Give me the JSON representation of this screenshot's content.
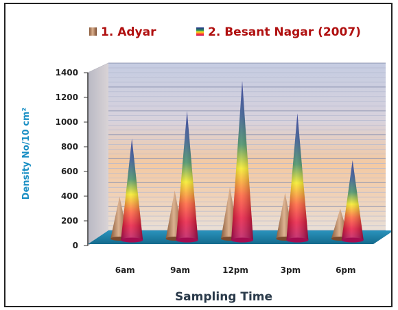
{
  "chart_data": {
    "type": "bar",
    "style": "3d-cone",
    "categories": [
      "6am",
      "9am",
      "12pm",
      "3pm",
      "6pm"
    ],
    "series": [
      {
        "name": "1. Adyar",
        "values": [
          350,
          400,
          430,
          380,
          250
        ]
      },
      {
        "name": "2. Besant Nagar (2007)",
        "values": [
          830,
          1060,
          1310,
          1040,
          650
        ]
      }
    ],
    "xlabel": "Sampling Time",
    "ylabel": "Density No/10 cm²",
    "ylim": [
      0,
      1400
    ],
    "yticks": [
      0,
      200,
      400,
      600,
      800,
      1000,
      1200,
      1400
    ],
    "grid": true,
    "legend_position": "top",
    "colors": {
      "adyar_top": "#cfa27e",
      "adyar_bottom": "#8a5a3a",
      "besant_gradient": [
        "#1e2a8c",
        "#2d6f70",
        "#f5e21a",
        "#ff4a3a",
        "#e0103a",
        "#c21060"
      ],
      "floor": "#1d7fa8",
      "wall_stripe_a": "#c9d0e6",
      "wall_stripe_b": "#f0c9a6",
      "ylabel_color": "#1a8fc4",
      "legend_text_color": "#b01010"
    }
  }
}
